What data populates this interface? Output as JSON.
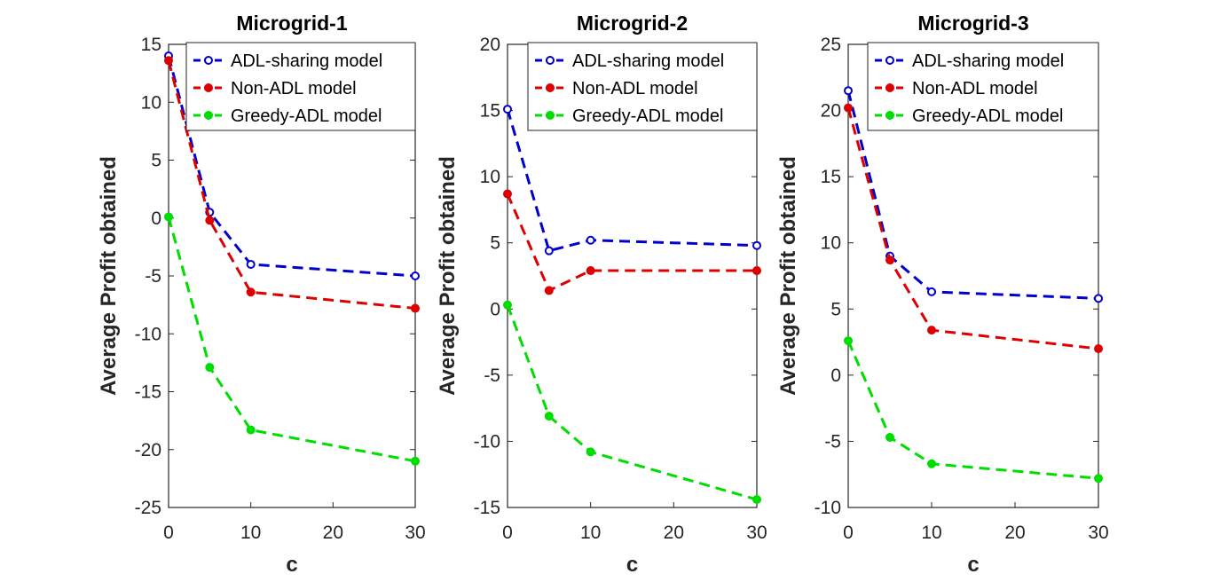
{
  "chart_data": [
    {
      "type": "line",
      "title": "Microgrid-1",
      "xlabel": "c",
      "ylabel": "Average Profit obtained",
      "xlim": [
        0,
        30
      ],
      "ylim": [
        -25,
        15
      ],
      "xticks": [
        "0",
        "10",
        "20",
        "30"
      ],
      "yticks": [
        "15",
        "10",
        "5",
        "0",
        "-5",
        "-10",
        "-15",
        "-20",
        "-25"
      ],
      "legend_position": "top-right",
      "x": [
        0,
        5,
        10,
        30
      ],
      "series": [
        {
          "name": "ADL-sharing model",
          "color": "#0000cc",
          "marker": "open-circle",
          "values": [
            14.0,
            0.5,
            -4.0,
            -5.0
          ]
        },
        {
          "name": "Non-ADL model",
          "color": "#dd0000",
          "marker": "filled-circle",
          "values": [
            13.6,
            -0.2,
            -6.4,
            -7.8
          ]
        },
        {
          "name": "Greedy-ADL model",
          "color": "#00dd00",
          "marker": "filled-circle",
          "values": [
            0.1,
            -12.9,
            -18.3,
            -21.0
          ]
        }
      ]
    },
    {
      "type": "line",
      "title": "Microgrid-2",
      "xlabel": "c",
      "ylabel": "Average Profit obtained",
      "xlim": [
        0,
        30
      ],
      "ylim": [
        -15,
        20
      ],
      "xticks": [
        "0",
        "10",
        "20",
        "30"
      ],
      "yticks": [
        "20",
        "15",
        "10",
        "5",
        "0",
        "-5",
        "-10",
        "-15"
      ],
      "legend_position": "top-right",
      "x": [
        0,
        5,
        10,
        30
      ],
      "series": [
        {
          "name": "ADL-sharing model",
          "color": "#0000cc",
          "marker": "open-circle",
          "values": [
            15.1,
            4.4,
            5.2,
            4.8
          ]
        },
        {
          "name": "Non-ADL model",
          "color": "#dd0000",
          "marker": "filled-circle",
          "values": [
            8.7,
            1.4,
            2.9,
            2.9
          ]
        },
        {
          "name": "Greedy-ADL model",
          "color": "#00dd00",
          "marker": "filled-circle",
          "values": [
            0.3,
            -8.1,
            -10.8,
            -14.4
          ]
        }
      ]
    },
    {
      "type": "line",
      "title": "Microgrid-3",
      "xlabel": "c",
      "ylabel": "Average Profit obtained",
      "xlim": [
        0,
        30
      ],
      "ylim": [
        -10,
        25
      ],
      "xticks": [
        "0",
        "10",
        "20",
        "30"
      ],
      "yticks": [
        "25",
        "20",
        "15",
        "10",
        "5",
        "0",
        "-5",
        "-10"
      ],
      "legend_position": "top-right",
      "x": [
        0,
        5,
        10,
        30
      ],
      "series": [
        {
          "name": "ADL-sharing model",
          "color": "#0000cc",
          "marker": "open-circle",
          "values": [
            21.5,
            9.0,
            6.3,
            5.8
          ]
        },
        {
          "name": "Non-ADL model",
          "color": "#dd0000",
          "marker": "filled-circle",
          "values": [
            20.2,
            8.7,
            3.4,
            2.0
          ]
        },
        {
          "name": "Greedy-ADL model",
          "color": "#00dd00",
          "marker": "filled-circle",
          "values": [
            2.6,
            -4.7,
            -6.7,
            -7.8
          ]
        }
      ]
    }
  ]
}
